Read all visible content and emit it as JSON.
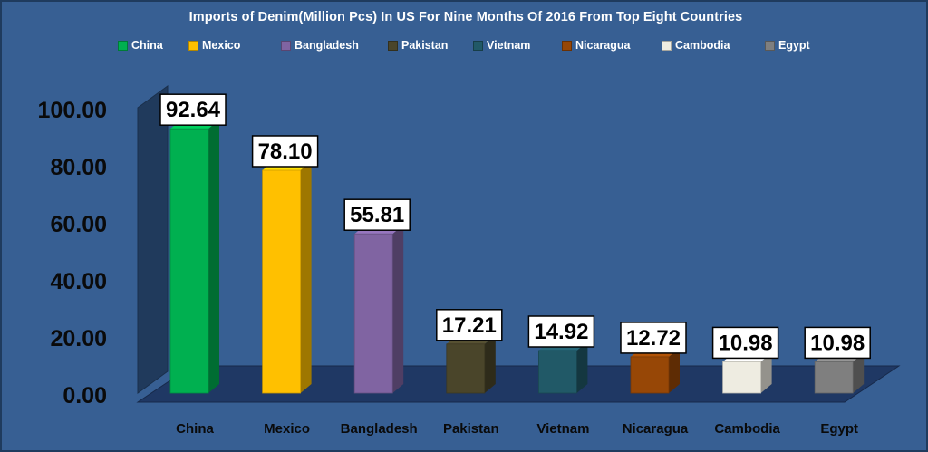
{
  "chart_data": {
    "type": "bar",
    "title": "Imports of Denim(Million Pcs) In US For Nine Months Of 2016 From Top Eight Countries",
    "categories": [
      "China",
      "Mexico",
      "Bangladesh",
      "Pakistan",
      "Vietnam",
      "Nicaragua",
      "Cambodia",
      "Egypt"
    ],
    "values": [
      92.64,
      78.1,
      55.81,
      17.21,
      14.92,
      12.72,
      10.98,
      10.98
    ],
    "value_labels": [
      "92.64",
      "78.10",
      "55.81",
      "17.21",
      "14.92",
      "12.72",
      "10.98",
      "10.98"
    ],
    "colors": [
      "#00b050",
      "#ffc000",
      "#8064a2",
      "#4a452a",
      "#215967",
      "#974706",
      "#eeece1",
      "#7f7f7f"
    ],
    "y_ticks": [
      "0.00",
      "20.00",
      "40.00",
      "60.00",
      "80.00",
      "100.00"
    ],
    "ylim": [
      0,
      100
    ],
    "xlabel": "",
    "ylabel": "",
    "legend_position": "top",
    "grid": false,
    "style": "3d-column"
  }
}
